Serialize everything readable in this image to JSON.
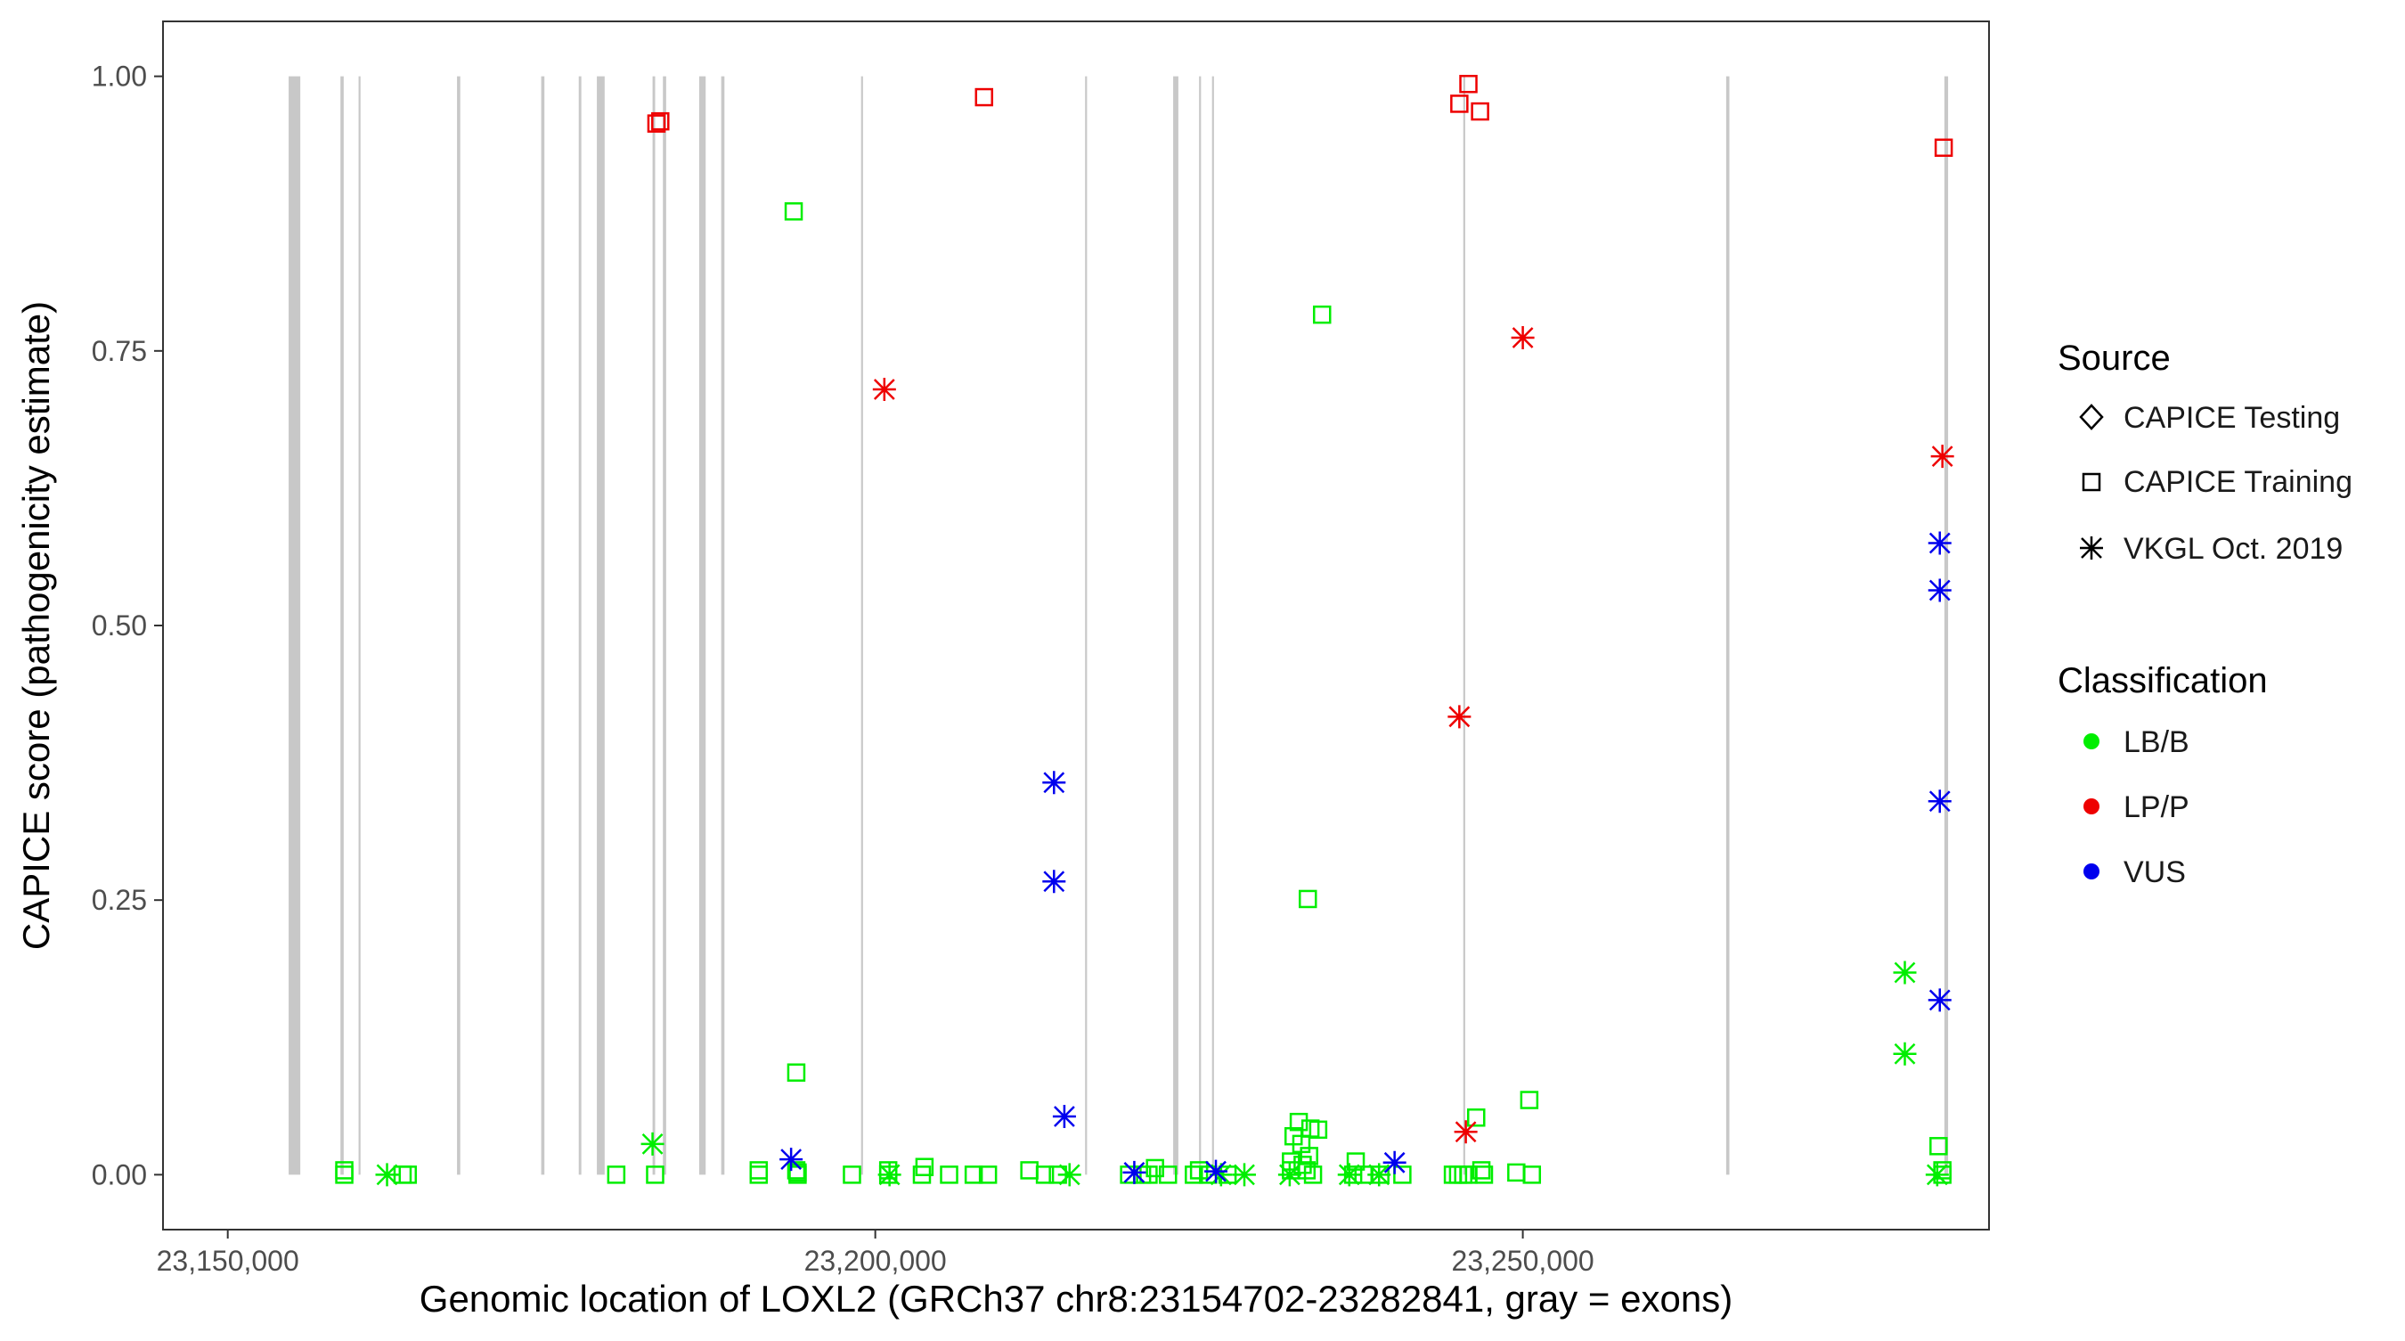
{
  "chart_data": {
    "type": "scatter",
    "title": "",
    "xlabel": "Genomic location of LOXL2 (GRCh37 chr8:23154702-23282841, gray = exons)",
    "ylabel": "CAPICE score (pathogenicity estimate)",
    "xlim": [
      23145000,
      23286000
    ],
    "ylim": [
      -0.05,
      1.05
    ],
    "x_ticks": [
      23150000,
      23200000,
      23250000
    ],
    "x_tick_labels": [
      "23,150,000",
      "23,200,000",
      "23,250,000"
    ],
    "y_ticks": [
      0,
      0.25,
      0.5,
      0.75,
      1
    ],
    "y_tick_labels": [
      "0.00",
      "0.25",
      "0.50",
      "0.75",
      "1.00"
    ],
    "grid": false,
    "legend_position": "right",
    "exon_color": "#c8c8c8",
    "exons": [
      {
        "start": 23154702,
        "end": 23155602
      },
      {
        "start": 23158702,
        "end": 23158952
      },
      {
        "start": 23160102,
        "end": 23160252
      },
      {
        "start": 23167702,
        "end": 23167952
      },
      {
        "start": 23174202,
        "end": 23174452
      },
      {
        "start": 23177102,
        "end": 23177302
      },
      {
        "start": 23178502,
        "end": 23179102
      },
      {
        "start": 23182802,
        "end": 23183002
      },
      {
        "start": 23183602,
        "end": 23183852
      },
      {
        "start": 23186402,
        "end": 23186902
      },
      {
        "start": 23188102,
        "end": 23188352
      },
      {
        "start": 23198902,
        "end": 23199052
      },
      {
        "start": 23216202,
        "end": 23216352
      },
      {
        "start": 23223002,
        "end": 23223402
      },
      {
        "start": 23225002,
        "end": 23225152
      },
      {
        "start": 23226002,
        "end": 23226152
      },
      {
        "start": 23245402,
        "end": 23245552
      },
      {
        "start": 23265702,
        "end": 23265952
      },
      {
        "start": 23282552,
        "end": 23282841
      }
    ],
    "legends": [
      {
        "title": "Source",
        "items": [
          {
            "label": "CAPICE Testing",
            "shape": "diamond"
          },
          {
            "label": "CAPICE Training",
            "shape": "square"
          },
          {
            "label": "VKGL Oct. 2019",
            "shape": "star"
          }
        ]
      },
      {
        "title": "Classification",
        "items": [
          {
            "label": "LB/B",
            "color": "#00ee00"
          },
          {
            "label": "LP/P",
            "color": "#ee0000"
          },
          {
            "label": "VUS",
            "color": "#0000ee"
          }
        ]
      }
    ],
    "series": [
      {
        "shape": "square",
        "color": "#00ee00",
        "points": [
          [
            23159000,
            0.0
          ],
          [
            23159000,
            0.004
          ],
          [
            23163500,
            0.0
          ],
          [
            23163900,
            0.0
          ],
          [
            23180000,
            0.0
          ],
          [
            23183000,
            0.0
          ],
          [
            23191000,
            0.0
          ],
          [
            23191000,
            0.004
          ],
          [
            23194000,
            0.0
          ],
          [
            23193700,
            0.877
          ],
          [
            23193900,
            0.093
          ],
          [
            23193900,
            0.004
          ],
          [
            23194000,
            0.002
          ],
          [
            23198200,
            0.0
          ],
          [
            23201000,
            0.0
          ],
          [
            23201000,
            0.004
          ],
          [
            23203600,
            0.0
          ],
          [
            23203800,
            0.007
          ],
          [
            23205700,
            0.0
          ],
          [
            23207600,
            0.0
          ],
          [
            23208700,
            0.0
          ],
          [
            23211900,
            0.004
          ],
          [
            23213100,
            0.0
          ],
          [
            23214100,
            0.0
          ],
          [
            23219600,
            0.0
          ],
          [
            23220600,
            0.0
          ],
          [
            23221100,
            0.0
          ],
          [
            23221600,
            0.006
          ],
          [
            23222600,
            0.0
          ],
          [
            23224600,
            0.0
          ],
          [
            23225000,
            0.004
          ],
          [
            23225700,
            0.0
          ],
          [
            23227200,
            0.0
          ],
          [
            23232100,
            0.004
          ],
          [
            23232100,
            0.012
          ],
          [
            23232300,
            0.035
          ],
          [
            23232700,
            0.048
          ],
          [
            23232900,
            0.028
          ],
          [
            23233000,
            0.009
          ],
          [
            23233300,
            0.004
          ],
          [
            23233500,
            0.017
          ],
          [
            23233600,
            0.042
          ],
          [
            23234200,
            0.041
          ],
          [
            23233800,
            0.0
          ],
          [
            23234500,
            0.783
          ],
          [
            23233400,
            0.251
          ],
          [
            23236900,
            0.0
          ],
          [
            23237100,
            0.012
          ],
          [
            23237700,
            0.0
          ],
          [
            23239000,
            0.0
          ],
          [
            23240700,
            0.0
          ],
          [
            23244600,
            0.0
          ],
          [
            23245000,
            0.0
          ],
          [
            23245400,
            0.0
          ],
          [
            23245800,
            0.0
          ],
          [
            23246400,
            0.052
          ],
          [
            23246800,
            0.004
          ],
          [
            23247000,
            0.0
          ],
          [
            23249500,
            0.002
          ],
          [
            23250700,
            0.0
          ],
          [
            23250500,
            0.068
          ],
          [
            23282100,
            0.026
          ],
          [
            23282400,
            0.004
          ],
          [
            23282400,
            0.0
          ]
        ]
      },
      {
        "shape": "square",
        "color": "#ee0000",
        "points": [
          [
            23183100,
            0.957
          ],
          [
            23183400,
            0.959
          ],
          [
            23208400,
            0.981
          ],
          [
            23245100,
            0.975
          ],
          [
            23245800,
            0.993
          ],
          [
            23246700,
            0.968
          ],
          [
            23282500,
            0.935
          ]
        ]
      },
      {
        "shape": "star",
        "color": "#00ee00",
        "points": [
          [
            23162300,
            0.0
          ],
          [
            23182800,
            0.028
          ],
          [
            23201100,
            0.0
          ],
          [
            23215000,
            0.0
          ],
          [
            23226700,
            0.0
          ],
          [
            23228500,
            0.0
          ],
          [
            23232000,
            0.0
          ],
          [
            23236600,
            0.0
          ],
          [
            23238900,
            0.0
          ],
          [
            23279500,
            0.184
          ],
          [
            23279500,
            0.11
          ],
          [
            23282000,
            0.0
          ]
        ]
      },
      {
        "shape": "star",
        "color": "#ee0000",
        "points": [
          [
            23200700,
            0.715
          ],
          [
            23245100,
            0.417
          ],
          [
            23245600,
            0.039
          ],
          [
            23250000,
            0.762
          ],
          [
            23282400,
            0.654
          ]
        ]
      },
      {
        "shape": "star",
        "color": "#0000ee",
        "points": [
          [
            23193500,
            0.014
          ],
          [
            23213800,
            0.357
          ],
          [
            23213800,
            0.267
          ],
          [
            23214600,
            0.053
          ],
          [
            23220000,
            0.002
          ],
          [
            23226300,
            0.003
          ],
          [
            23240100,
            0.011
          ],
          [
            23282200,
            0.575
          ],
          [
            23282200,
            0.532
          ],
          [
            23282200,
            0.34
          ],
          [
            23282200,
            0.159
          ]
        ]
      }
    ]
  }
}
